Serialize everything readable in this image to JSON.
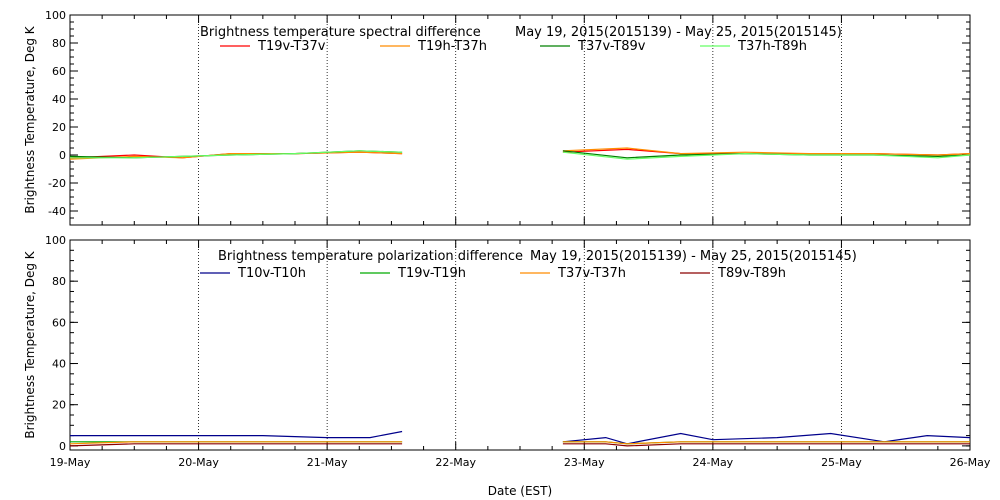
{
  "xlabel": "Date (EST)",
  "x_ticks": [
    "19-May",
    "20-May",
    "21-May",
    "22-May",
    "23-May",
    "24-May",
    "25-May",
    "26-May"
  ],
  "chart_data": [
    {
      "type": "line",
      "title": "Brightness temperature spectral difference",
      "date_range": "May 19, 2015(2015139) - May 25, 2015(2015145)",
      "ylabel": "Brightness Temperature, Deg K",
      "xlim": [
        "2015-05-19",
        "2015-05-26"
      ],
      "ylim": [
        -50,
        100
      ],
      "y_ticks": [
        -40,
        -20,
        0,
        20,
        40,
        60,
        80,
        100
      ],
      "grid": "vertical dotted lines at each day",
      "legend_position": "top",
      "data_gap": [
        "2015-05-21 14:00",
        "2015-05-22 20:00"
      ],
      "series": [
        {
          "name": "T19v-T37v",
          "color": "#ff0000",
          "x": [
            "2015-05-19 00:00",
            "2015-05-19 12:00",
            "2015-05-19 21:00",
            "2015-05-20 06:00",
            "2015-05-20 18:00",
            "2015-05-21 06:00",
            "2015-05-21 14:00",
            "2015-05-22 20:00",
            "2015-05-23 08:00",
            "2015-05-23 18:00",
            "2015-05-24 06:00",
            "2015-05-24 18:00",
            "2015-05-25 06:00",
            "2015-05-25 18:00",
            "2015-05-26 00:00"
          ],
          "values": [
            -2,
            0,
            -2,
            1,
            1,
            2,
            1,
            2,
            4,
            1,
            1,
            1,
            1,
            0,
            1
          ]
        },
        {
          "name": "T19h-T37h",
          "color": "#ff8c00",
          "x": [
            "2015-05-19 00:00",
            "2015-05-19 12:00",
            "2015-05-19 21:00",
            "2015-05-20 06:00",
            "2015-05-20 18:00",
            "2015-05-21 06:00",
            "2015-05-21 14:00",
            "2015-05-22 20:00",
            "2015-05-23 08:00",
            "2015-05-23 18:00",
            "2015-05-24 06:00",
            "2015-05-24 18:00",
            "2015-05-25 06:00",
            "2015-05-25 18:00",
            "2015-05-26 00:00"
          ],
          "values": [
            -3,
            -1,
            -2,
            1,
            1,
            2,
            1,
            3,
            5,
            1,
            2,
            1,
            1,
            0,
            1
          ]
        },
        {
          "name": "T37v-T89v",
          "color": "#008000",
          "x": [
            "2015-05-19 00:00",
            "2015-05-19 12:00",
            "2015-05-19 21:00",
            "2015-05-20 06:00",
            "2015-05-20 18:00",
            "2015-05-21 06:00",
            "2015-05-21 14:00",
            "2015-05-22 20:00",
            "2015-05-23 08:00",
            "2015-05-23 18:00",
            "2015-05-24 06:00",
            "2015-05-24 18:00",
            "2015-05-25 06:00",
            "2015-05-25 18:00",
            "2015-05-26 00:00"
          ],
          "values": [
            -1,
            -2,
            -1,
            0,
            1,
            3,
            2,
            3,
            -2,
            0,
            1,
            0,
            0,
            -1,
            0
          ]
        },
        {
          "name": "T37h-T89h",
          "color": "#66ff66",
          "x": [
            "2015-05-19 00:00",
            "2015-05-19 12:00",
            "2015-05-19 21:00",
            "2015-05-20 06:00",
            "2015-05-20 18:00",
            "2015-05-21 06:00",
            "2015-05-21 14:00",
            "2015-05-22 20:00",
            "2015-05-23 08:00",
            "2015-05-23 18:00",
            "2015-05-24 06:00",
            "2015-05-24 18:00",
            "2015-05-25 06:00",
            "2015-05-25 18:00",
            "2015-05-26 00:00"
          ],
          "values": [
            -2,
            -2,
            -1,
            0,
            1,
            3,
            2,
            2,
            -3,
            -1,
            1,
            0,
            0,
            -2,
            0
          ]
        }
      ]
    },
    {
      "type": "line",
      "title": "Brightness temperature polarization difference",
      "date_range": "May 19, 2015(2015139) - May 25, 2015(2015145)",
      "ylabel": "Brightness Temperature, Deg K",
      "xlim": [
        "2015-05-19",
        "2015-05-26"
      ],
      "ylim": [
        -2,
        100
      ],
      "y_ticks": [
        0,
        20,
        40,
        60,
        80,
        100
      ],
      "grid": "vertical dotted lines at each day",
      "legend_position": "top",
      "data_gap": [
        "2015-05-21 14:00",
        "2015-05-22 20:00"
      ],
      "series": [
        {
          "name": "T10v-T10h",
          "color": "#00008b",
          "x": [
            "2015-05-19 00:00",
            "2015-05-19 12:00",
            "2015-05-20 00:00",
            "2015-05-20 12:00",
            "2015-05-21 00:00",
            "2015-05-21 08:00",
            "2015-05-21 14:00",
            "2015-05-22 20:00",
            "2015-05-23 04:00",
            "2015-05-23 08:00",
            "2015-05-23 18:00",
            "2015-05-24 00:00",
            "2015-05-24 12:00",
            "2015-05-24 22:00",
            "2015-05-25 08:00",
            "2015-05-25 16:00",
            "2015-05-26 00:00"
          ],
          "values": [
            5,
            5,
            5,
            5,
            4,
            4,
            7,
            2,
            4,
            1,
            6,
            3,
            4,
            6,
            2,
            5,
            4
          ]
        },
        {
          "name": "T19v-T19h",
          "color": "#00aa00",
          "x": [
            "2015-05-19 00:00",
            "2015-05-19 12:00",
            "2015-05-20 00:00",
            "2015-05-20 12:00",
            "2015-05-21 00:00",
            "2015-05-21 08:00",
            "2015-05-21 14:00",
            "2015-05-22 20:00",
            "2015-05-23 04:00",
            "2015-05-23 08:00",
            "2015-05-23 18:00",
            "2015-05-24 00:00",
            "2015-05-24 12:00",
            "2015-05-24 22:00",
            "2015-05-25 08:00",
            "2015-05-25 16:00",
            "2015-05-26 00:00"
          ],
          "values": [
            2,
            2,
            2,
            2,
            2,
            2,
            2,
            2,
            2,
            1,
            2,
            2,
            2,
            2,
            2,
            2,
            2
          ]
        },
        {
          "name": "T37v-T37h",
          "color": "#ff8c00",
          "x": [
            "2015-05-19 00:00",
            "2015-05-19 12:00",
            "2015-05-20 00:00",
            "2015-05-20 12:00",
            "2015-05-21 00:00",
            "2015-05-21 08:00",
            "2015-05-21 14:00",
            "2015-05-22 20:00",
            "2015-05-23 04:00",
            "2015-05-23 08:00",
            "2015-05-23 18:00",
            "2015-05-24 00:00",
            "2015-05-24 12:00",
            "2015-05-24 22:00",
            "2015-05-25 08:00",
            "2015-05-25 16:00",
            "2015-05-26 00:00"
          ],
          "values": [
            1,
            2,
            2,
            2,
            2,
            2,
            2,
            2,
            2,
            1,
            2,
            2,
            2,
            2,
            2,
            2,
            2
          ]
        },
        {
          "name": "T89v-T89h",
          "color": "#8b0000",
          "x": [
            "2015-05-19 00:00",
            "2015-05-19 12:00",
            "2015-05-20 00:00",
            "2015-05-20 12:00",
            "2015-05-21 00:00",
            "2015-05-21 08:00",
            "2015-05-21 14:00",
            "2015-05-22 20:00",
            "2015-05-23 04:00",
            "2015-05-23 08:00",
            "2015-05-23 18:00",
            "2015-05-24 00:00",
            "2015-05-24 12:00",
            "2015-05-24 22:00",
            "2015-05-25 08:00",
            "2015-05-25 16:00",
            "2015-05-26 00:00"
          ],
          "values": [
            0,
            1,
            1,
            1,
            1,
            1,
            1,
            1,
            1,
            0,
            1,
            1,
            1,
            1,
            1,
            1,
            1
          ]
        }
      ]
    }
  ]
}
